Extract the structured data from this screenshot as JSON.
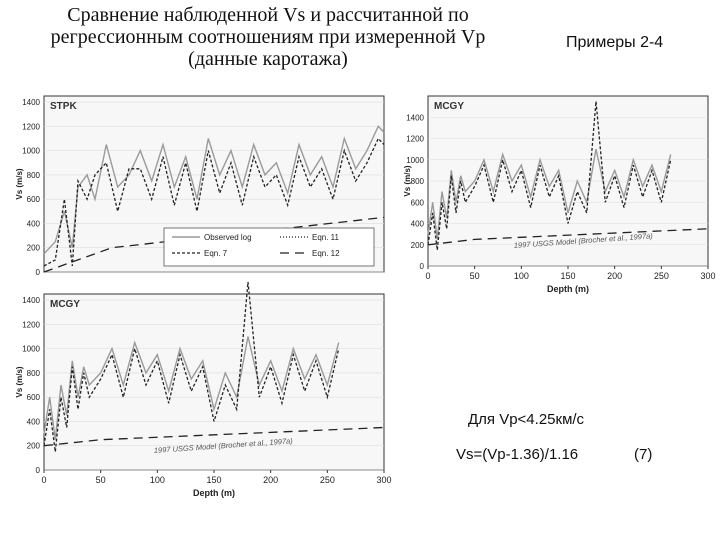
{
  "slide": {
    "title_lines": [
      "Сравнение наблюденной Vs и рассчитанной по",
      "регрессионным соотношениям при измеренной Vp",
      "(данные каротажа)"
    ],
    "examples_label": "Примеры 2-4",
    "formula_condition": "Для Vp<4.25км/с",
    "formula": "Vs=(Vp-1.36)/1.16",
    "formula_number": "(7)"
  },
  "chart_data": [
    {
      "type": "line",
      "panel_label": "STPK",
      "ylabel": "Vs (m/s)",
      "xlabel": "",
      "xlim": [
        0,
        300
      ],
      "ylim": [
        0,
        1450
      ],
      "yticks": [
        "1400",
        "1200",
        "1000",
        "800",
        "600",
        "400",
        "200",
        "0"
      ],
      "xticks": [],
      "legend": [
        "Observed log",
        "Eqn. 11",
        "Eqn. 7",
        "Eqn. 12"
      ],
      "series": [
        {
          "name": "Observed log",
          "style": "solid-gray",
          "x": [
            0,
            10,
            18,
            25,
            30,
            38,
            45,
            55,
            65,
            75,
            85,
            95,
            105,
            115,
            125,
            135,
            145,
            155,
            165,
            175,
            185,
            195,
            205,
            215,
            225,
            235,
            245,
            255,
            265,
            275,
            285,
            295,
            300
          ],
          "values": [
            150,
            250,
            500,
            200,
            700,
            800,
            600,
            1050,
            700,
            800,
            1000,
            750,
            1050,
            700,
            950,
            600,
            1100,
            800,
            1000,
            700,
            1050,
            800,
            900,
            650,
            1050,
            800,
            950,
            700,
            1100,
            850,
            1000,
            1200,
            1150
          ]
        },
        {
          "name": "Eqn. 7",
          "style": "dashed-dark",
          "x": [
            0,
            10,
            18,
            25,
            30,
            38,
            45,
            55,
            65,
            75,
            85,
            95,
            105,
            115,
            125,
            135,
            145,
            155,
            165,
            175,
            185,
            195,
            205,
            215,
            225,
            235,
            245,
            255,
            265,
            275,
            285,
            295,
            300
          ],
          "values": [
            50,
            100,
            600,
            50,
            750,
            600,
            800,
            900,
            500,
            850,
            850,
            600,
            950,
            550,
            900,
            500,
            1000,
            650,
            900,
            550,
            950,
            700,
            800,
            550,
            950,
            700,
            850,
            600,
            1000,
            750,
            900,
            1100,
            1050
          ]
        },
        {
          "name": "Eqn. 12",
          "style": "long-dash",
          "x": [
            0,
            60,
            300
          ],
          "values": [
            0,
            200,
            450
          ]
        }
      ]
    },
    {
      "type": "line",
      "panel_label": "MCGY",
      "ylabel": "Vs (m/s)",
      "xlabel": "Depth (m)",
      "xlim": [
        0,
        300
      ],
      "ylim": [
        0,
        1450
      ],
      "yticks": [
        "1400",
        "1200",
        "1000",
        "800",
        "600",
        "400",
        "200",
        "0"
      ],
      "xticks": [
        "0",
        "50",
        "100",
        "150",
        "200",
        "250",
        "300"
      ],
      "annotation": "1997 USGS Model (Brocher et al., 1997a)",
      "series": [
        {
          "name": "Observed log",
          "style": "solid-gray",
          "x": [
            0,
            5,
            10,
            15,
            20,
            25,
            30,
            35,
            40,
            50,
            60,
            70,
            80,
            90,
            100,
            110,
            120,
            130,
            140,
            150,
            160,
            170,
            180,
            190,
            200,
            210,
            220,
            230,
            240,
            250,
            260
          ],
          "values": [
            300,
            600,
            250,
            700,
            450,
            900,
            600,
            850,
            700,
            800,
            1000,
            700,
            1050,
            800,
            950,
            650,
            1000,
            750,
            900,
            500,
            800,
            600,
            1100,
            700,
            900,
            650,
            1000,
            750,
            950,
            700,
            1050
          ]
        },
        {
          "name": "Eqn. 7",
          "style": "dashed-dark",
          "x": [
            0,
            5,
            10,
            15,
            20,
            25,
            30,
            35,
            40,
            50,
            60,
            70,
            80,
            90,
            100,
            110,
            120,
            130,
            140,
            150,
            160,
            170,
            180,
            190,
            200,
            210,
            220,
            230,
            240,
            250,
            260
          ],
          "values": [
            200,
            500,
            150,
            600,
            350,
            850,
            500,
            800,
            600,
            750,
            950,
            600,
            1000,
            700,
            900,
            550,
            950,
            650,
            850,
            400,
            700,
            500,
            1550,
            600,
            850,
            550,
            950,
            650,
            900,
            600,
            1000
          ]
        },
        {
          "name": "USGS Model",
          "style": "long-dash",
          "x": [
            0,
            50,
            300
          ],
          "values": [
            200,
            250,
            350
          ]
        }
      ]
    },
    {
      "type": "line",
      "panel_label": "MCGY",
      "ylabel": "Vs (m/s)",
      "xlabel": "Depth (m)",
      "xlim": [
        0,
        300
      ],
      "ylim": [
        0,
        1600
      ],
      "yticks": [
        "1400",
        "1200",
        "1000",
        "800",
        "600",
        "400",
        "200",
        "0"
      ],
      "xticks": [
        "0",
        "50",
        "100",
        "150",
        "200",
        "250",
        "300"
      ],
      "annotation": "1997 USGS Model (Brocher et al., 1997a)",
      "series": [
        {
          "name": "Observed log",
          "style": "solid-gray",
          "x": [
            0,
            5,
            10,
            15,
            20,
            25,
            30,
            35,
            40,
            50,
            60,
            70,
            80,
            90,
            100,
            110,
            120,
            130,
            140,
            150,
            160,
            170,
            180,
            190,
            200,
            210,
            220,
            230,
            240,
            250,
            260
          ],
          "values": [
            300,
            600,
            250,
            700,
            450,
            900,
            600,
            850,
            700,
            800,
            1000,
            700,
            1050,
            800,
            950,
            650,
            1000,
            750,
            900,
            500,
            800,
            600,
            1100,
            700,
            900,
            650,
            1000,
            750,
            950,
            700,
            1050
          ]
        },
        {
          "name": "Eqn. 7",
          "style": "dashed-dark",
          "x": [
            0,
            5,
            10,
            15,
            20,
            25,
            30,
            35,
            40,
            50,
            60,
            70,
            80,
            90,
            100,
            110,
            120,
            130,
            140,
            150,
            160,
            170,
            180,
            190,
            200,
            210,
            220,
            230,
            240,
            250,
            260
          ],
          "values": [
            200,
            500,
            150,
            600,
            350,
            850,
            500,
            800,
            600,
            750,
            950,
            600,
            1000,
            700,
            900,
            550,
            950,
            650,
            850,
            400,
            700,
            500,
            1550,
            600,
            850,
            550,
            950,
            650,
            900,
            600,
            1000
          ]
        },
        {
          "name": "USGS Model",
          "style": "long-dash",
          "x": [
            0,
            50,
            300
          ],
          "values": [
            200,
            250,
            350
          ]
        }
      ]
    }
  ]
}
